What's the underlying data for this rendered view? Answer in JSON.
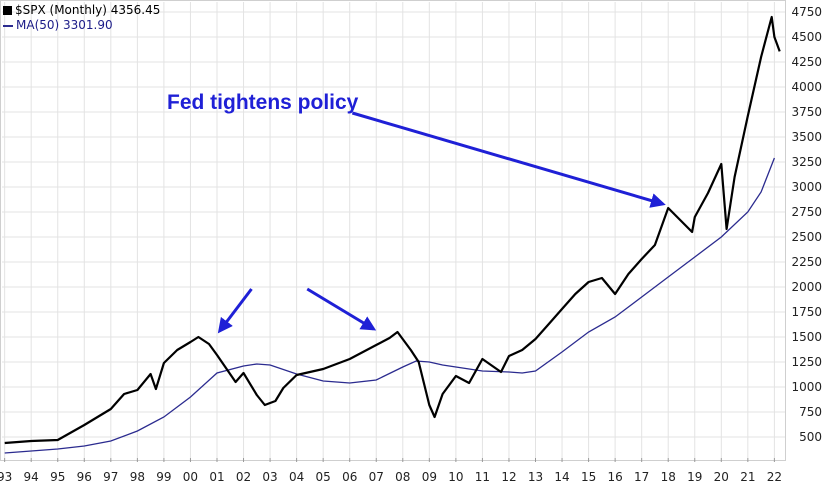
{
  "legend": {
    "price_label": "$SPX (Monthly) 4356.45",
    "ma_label": "MA(50) 3301.90"
  },
  "annotation": "Fed tightens policy",
  "colors": {
    "price": "#000000",
    "ma": "#2b2b8f",
    "arrow": "#1f20d6",
    "grid": "#e3e3e3"
  },
  "chart_data": {
    "type": "line",
    "ylim": [
      290,
      4850
    ],
    "xlim": [
      1992.9,
      2022.4
    ],
    "yticks": [
      500,
      750,
      1000,
      1250,
      1500,
      1750,
      2000,
      2250,
      2500,
      2750,
      3000,
      3250,
      3500,
      3750,
      4000,
      4250,
      4500,
      4750
    ],
    "xtick_labels": [
      "93",
      "94",
      "95",
      "96",
      "97",
      "98",
      "99",
      "00",
      "01",
      "02",
      "03",
      "04",
      "05",
      "06",
      "07",
      "08",
      "09",
      "10",
      "11",
      "12",
      "13",
      "14",
      "15",
      "16",
      "17",
      "18",
      "19",
      "20",
      "21",
      "22"
    ],
    "series": [
      {
        "name": "$SPX (Monthly)",
        "x": [
          1993.0,
          1994.0,
          1995.0,
          1996.0,
          1997.0,
          1997.5,
          1998.0,
          1998.5,
          1998.7,
          1999.0,
          1999.5,
          2000.0,
          2000.3,
          2000.7,
          2001.0,
          2001.7,
          2002.0,
          2002.5,
          2002.8,
          2003.2,
          2003.5,
          2004.0,
          2005.0,
          2006.0,
          2007.0,
          2007.5,
          2007.8,
          2008.3,
          2008.6,
          2009.0,
          2009.2,
          2009.5,
          2010.0,
          2010.5,
          2011.0,
          2011.7,
          2012.0,
          2012.5,
          2013.0,
          2013.5,
          2014.0,
          2014.5,
          2015.0,
          2015.5,
          2016.0,
          2016.5,
          2017.0,
          2017.5,
          2018.0,
          2018.9,
          2019.0,
          2019.5,
          2020.0,
          2020.2,
          2020.5,
          2021.0,
          2021.5,
          2021.9,
          2022.0,
          2022.2
        ],
        "values": [
          440,
          460,
          470,
          620,
          780,
          930,
          970,
          1130,
          980,
          1240,
          1370,
          1450,
          1500,
          1430,
          1320,
          1050,
          1140,
          920,
          820,
          860,
          990,
          1120,
          1180,
          1280,
          1420,
          1490,
          1550,
          1370,
          1250,
          820,
          700,
          930,
          1110,
          1040,
          1280,
          1150,
          1310,
          1370,
          1480,
          1630,
          1780,
          1930,
          2050,
          2090,
          1930,
          2130,
          2280,
          2420,
          2790,
          2550,
          2700,
          2940,
          3230,
          2580,
          3100,
          3710,
          4300,
          4700,
          4500,
          4356
        ]
      },
      {
        "name": "MA(50)",
        "x": [
          1993.0,
          1994.0,
          1995.0,
          1996.0,
          1997.0,
          1998.0,
          1999.0,
          2000.0,
          2001.0,
          2002.0,
          2002.5,
          2003.0,
          2004.0,
          2005.0,
          2006.0,
          2007.0,
          2008.0,
          2008.5,
          2009.0,
          2009.5,
          2010.0,
          2011.0,
          2012.0,
          2012.5,
          2013.0,
          2014.0,
          2015.0,
          2016.0,
          2017.0,
          2018.0,
          2019.0,
          2020.0,
          2021.0,
          2021.5,
          2022.0
        ],
        "values": [
          340,
          360,
          380,
          410,
          460,
          560,
          700,
          900,
          1140,
          1210,
          1230,
          1220,
          1130,
          1060,
          1040,
          1070,
          1200,
          1260,
          1250,
          1220,
          1200,
          1160,
          1150,
          1140,
          1160,
          1350,
          1550,
          1700,
          1900,
          2100,
          2300,
          2500,
          2750,
          2950,
          3290
        ]
      }
    ]
  }
}
